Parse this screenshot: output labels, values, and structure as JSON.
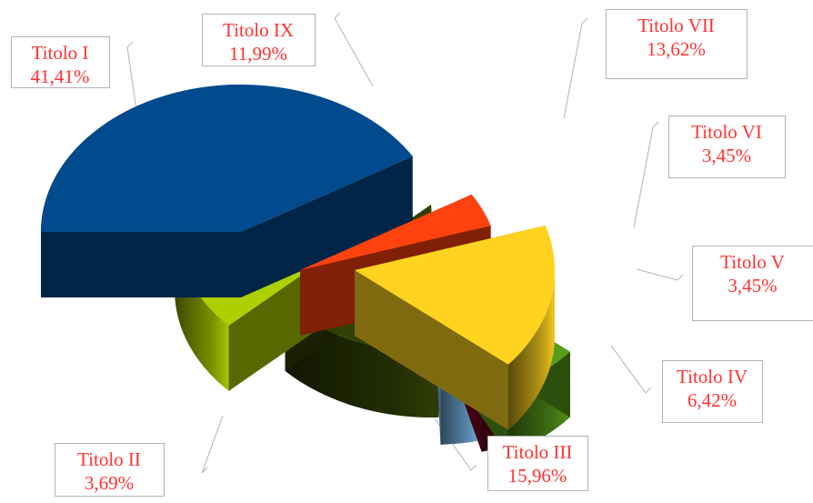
{
  "chart_data": {
    "type": "pie",
    "style": "3d-exploded",
    "categories": [
      "Titolo I",
      "Titolo II",
      "Titolo III",
      "Titolo IV",
      "Titolo V",
      "Titolo VI",
      "Titolo VII",
      "Titolo IX"
    ],
    "values": [
      41.41,
      3.69,
      15.96,
      6.42,
      3.45,
      3.45,
      13.62,
      11.99
    ],
    "value_labels": [
      "41,41%",
      "3,69%",
      "15,96%",
      "6,42%",
      "3,45%",
      "3,45%",
      "13,62%",
      "11,99%"
    ],
    "colors": [
      "#004A8D",
      "#FF420E",
      "#FFD320",
      "#579D1C",
      "#7E0021",
      "#83CAFF",
      "#314004",
      "#AECF00"
    ],
    "label_color": "#FF3333",
    "title": "",
    "legend": "none"
  }
}
